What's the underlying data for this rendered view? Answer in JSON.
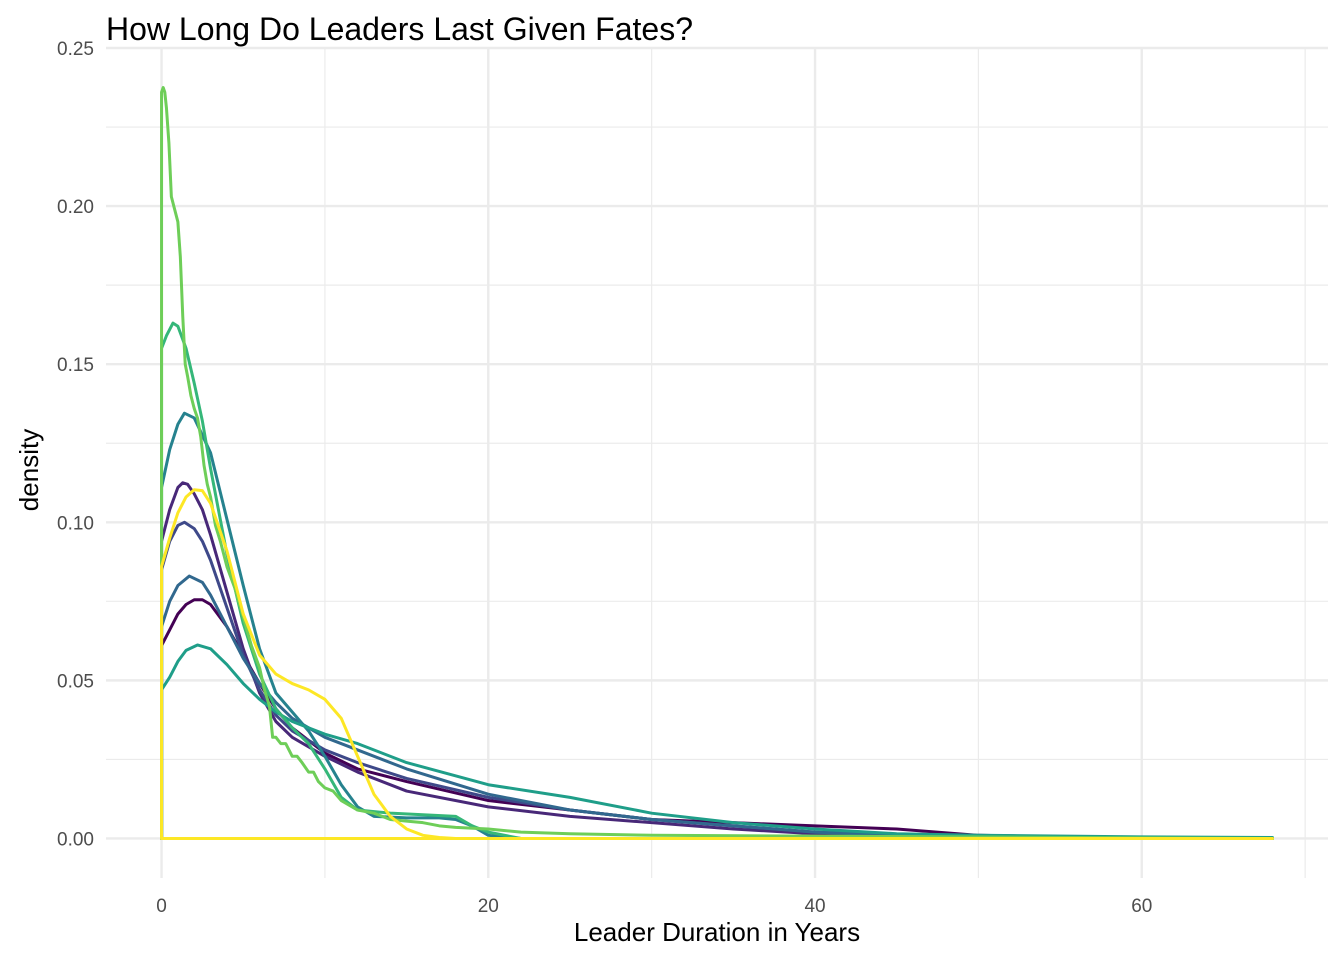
{
  "chart_data": {
    "type": "line",
    "title": "How Long Do Leaders Last Given Fates?",
    "xlabel": "Leader Duration in Years",
    "ylabel": "density",
    "xlim": [
      -3.4,
      71.4
    ],
    "ylim": [
      -0.0125,
      0.25
    ],
    "x_ticks": [
      0,
      20,
      40,
      60
    ],
    "x_tick_labels": [
      "0",
      "20",
      "40",
      "60"
    ],
    "y_ticks": [
      0,
      0.05,
      0.1,
      0.15,
      0.2,
      0.25
    ],
    "y_tick_labels": [
      "0.00",
      "0.05",
      "0.10",
      "0.15",
      "0.20",
      "0.25"
    ],
    "grid": true,
    "legend": "none",
    "series": [
      {
        "color": "#440154",
        "points": [
          [
            0,
            0
          ],
          [
            0,
            0.061
          ],
          [
            0.5,
            0.066
          ],
          [
            1,
            0.071
          ],
          [
            1.5,
            0.074
          ],
          [
            2,
            0.0755
          ],
          [
            2.5,
            0.0755
          ],
          [
            3,
            0.074
          ],
          [
            4,
            0.067
          ],
          [
            5,
            0.058
          ],
          [
            6,
            0.049
          ],
          [
            7,
            0.041
          ],
          [
            8,
            0.035
          ],
          [
            10,
            0.027
          ],
          [
            12,
            0.022
          ],
          [
            15,
            0.018
          ],
          [
            20,
            0.012
          ],
          [
            25,
            0.009
          ],
          [
            30,
            0.006
          ],
          [
            35,
            0.005
          ],
          [
            40,
            0.004
          ],
          [
            45,
            0.003
          ],
          [
            50,
            0.001
          ],
          [
            55,
            0.0005
          ],
          [
            68,
            0
          ],
          [
            68,
            0
          ],
          [
            0,
            0
          ]
        ]
      },
      {
        "color": "#482878",
        "points": [
          [
            0,
            0
          ],
          [
            0,
            0.094
          ],
          [
            0.5,
            0.104
          ],
          [
            1,
            0.111
          ],
          [
            1.3,
            0.1125
          ],
          [
            1.6,
            0.112
          ],
          [
            2,
            0.109
          ],
          [
            2.5,
            0.104
          ],
          [
            3,
            0.096
          ],
          [
            4,
            0.078
          ],
          [
            5,
            0.06
          ],
          [
            6,
            0.046
          ],
          [
            7,
            0.037
          ],
          [
            8,
            0.032
          ],
          [
            10,
            0.026
          ],
          [
            12,
            0.021
          ],
          [
            15,
            0.015
          ],
          [
            20,
            0.01
          ],
          [
            25,
            0.007
          ],
          [
            30,
            0.005
          ],
          [
            35,
            0.003
          ],
          [
            40,
            0.0015
          ],
          [
            45,
            0.001
          ],
          [
            50,
            0.0005
          ],
          [
            68,
            0
          ],
          [
            68,
            0
          ],
          [
            0,
            0
          ]
        ]
      },
      {
        "color": "#3e4989",
        "points": [
          [
            0,
            0
          ],
          [
            0,
            0.085
          ],
          [
            0.5,
            0.094
          ],
          [
            1,
            0.099
          ],
          [
            1.4,
            0.1
          ],
          [
            2,
            0.098
          ],
          [
            2.5,
            0.094
          ],
          [
            3,
            0.088
          ],
          [
            4,
            0.073
          ],
          [
            5,
            0.058
          ],
          [
            6,
            0.047
          ],
          [
            7,
            0.039
          ],
          [
            8,
            0.034
          ],
          [
            10,
            0.028
          ],
          [
            12,
            0.024
          ],
          [
            15,
            0.019
          ],
          [
            20,
            0.013
          ],
          [
            25,
            0.009
          ],
          [
            30,
            0.006
          ],
          [
            35,
            0.004
          ],
          [
            40,
            0.002
          ],
          [
            45,
            0.001
          ],
          [
            50,
            0.0005
          ],
          [
            68,
            0
          ],
          [
            68,
            0
          ],
          [
            0,
            0
          ]
        ]
      },
      {
        "color": "#31688e",
        "points": [
          [
            0,
            0
          ],
          [
            0,
            0.067
          ],
          [
            0.5,
            0.075
          ],
          [
            1,
            0.08
          ],
          [
            1.7,
            0.083
          ],
          [
            2.5,
            0.081
          ],
          [
            3,
            0.077
          ],
          [
            4,
            0.067
          ],
          [
            5,
            0.057
          ],
          [
            6,
            0.049
          ],
          [
            7,
            0.043
          ],
          [
            8,
            0.038
          ],
          [
            10,
            0.032
          ],
          [
            12,
            0.028
          ],
          [
            15,
            0.022
          ],
          [
            20,
            0.014
          ],
          [
            25,
            0.009
          ],
          [
            30,
            0.006
          ],
          [
            35,
            0.004
          ],
          [
            40,
            0.002
          ],
          [
            45,
            0.001
          ],
          [
            50,
            0.0005
          ],
          [
            68,
            0
          ],
          [
            68,
            0
          ],
          [
            0,
            0
          ]
        ]
      },
      {
        "color": "#26828e",
        "points": [
          [
            0,
            0
          ],
          [
            0,
            0.111
          ],
          [
            0.5,
            0.123
          ],
          [
            1,
            0.131
          ],
          [
            1.4,
            0.1345
          ],
          [
            2,
            0.133
          ],
          [
            3,
            0.122
          ],
          [
            4,
            0.101
          ],
          [
            5,
            0.08
          ],
          [
            6,
            0.06
          ],
          [
            7,
            0.046
          ],
          [
            8,
            0.04
          ],
          [
            9,
            0.034
          ],
          [
            10,
            0.026
          ],
          [
            11,
            0.017
          ],
          [
            12,
            0.01
          ],
          [
            13,
            0.007
          ],
          [
            15,
            0.0065
          ],
          [
            17,
            0.0065
          ],
          [
            18,
            0.006
          ],
          [
            19,
            0.004
          ],
          [
            20,
            0.001
          ],
          [
            22,
            0
          ],
          [
            68,
            0
          ],
          [
            0,
            0
          ]
        ]
      },
      {
        "color": "#1f9e89",
        "points": [
          [
            0,
            0
          ],
          [
            0,
            0.047
          ],
          [
            0.5,
            0.051
          ],
          [
            1,
            0.056
          ],
          [
            1.5,
            0.0595
          ],
          [
            2.2,
            0.0612
          ],
          [
            3,
            0.06
          ],
          [
            4,
            0.055
          ],
          [
            5,
            0.049
          ],
          [
            6,
            0.044
          ],
          [
            7,
            0.04
          ],
          [
            8,
            0.037
          ],
          [
            10,
            0.033
          ],
          [
            12,
            0.03
          ],
          [
            15,
            0.024
          ],
          [
            20,
            0.017
          ],
          [
            25,
            0.013
          ],
          [
            30,
            0.008
          ],
          [
            35,
            0.005
          ],
          [
            40,
            0.003
          ],
          [
            45,
            0.0015
          ],
          [
            50,
            0.001
          ],
          [
            60,
            0.0005
          ],
          [
            68,
            0.0003
          ],
          [
            68,
            0
          ],
          [
            0,
            0
          ]
        ]
      },
      {
        "color": "#35b779",
        "points": [
          [
            0,
            0
          ],
          [
            0,
            0.155
          ],
          [
            0.3,
            0.159
          ],
          [
            0.7,
            0.163
          ],
          [
            1,
            0.162
          ],
          [
            1.5,
            0.155
          ],
          [
            2,
            0.144
          ],
          [
            2.5,
            0.132
          ],
          [
            3,
            0.117
          ],
          [
            4,
            0.09
          ],
          [
            5,
            0.068
          ],
          [
            6,
            0.052
          ],
          [
            7,
            0.041
          ],
          [
            8,
            0.035
          ],
          [
            9,
            0.03
          ],
          [
            10,
            0.022
          ],
          [
            11,
            0.013
          ],
          [
            12,
            0.009
          ],
          [
            14,
            0.008
          ],
          [
            16,
            0.0075
          ],
          [
            18,
            0.007
          ],
          [
            19,
            0.004
          ],
          [
            20,
            0.002
          ],
          [
            22,
            0
          ],
          [
            68,
            0
          ],
          [
            0,
            0
          ]
        ]
      },
      {
        "color": "#6ece58",
        "points": [
          [
            0,
            0
          ],
          [
            0,
            0.236
          ],
          [
            0.1,
            0.2375
          ],
          [
            0.2,
            0.236
          ],
          [
            0.3,
            0.231
          ],
          [
            0.45,
            0.22
          ],
          [
            0.6,
            0.203
          ],
          [
            0.8,
            0.199
          ],
          [
            1,
            0.195
          ],
          [
            1.15,
            0.184
          ],
          [
            1.3,
            0.165
          ],
          [
            1.45,
            0.15
          ],
          [
            1.6,
            0.146
          ],
          [
            1.8,
            0.14
          ],
          [
            2,
            0.136
          ],
          [
            2.2,
            0.133
          ],
          [
            2.4,
            0.127
          ],
          [
            2.6,
            0.118
          ],
          [
            2.8,
            0.112
          ],
          [
            3,
            0.108
          ],
          [
            3.3,
            0.099
          ],
          [
            3.6,
            0.094
          ],
          [
            4,
            0.086
          ],
          [
            4.5,
            0.079
          ],
          [
            5,
            0.07
          ],
          [
            5.5,
            0.061
          ],
          [
            6,
            0.054
          ],
          [
            6.3,
            0.047
          ],
          [
            6.6,
            0.042
          ],
          [
            6.8,
            0.032
          ],
          [
            7,
            0.032
          ],
          [
            7.3,
            0.03
          ],
          [
            7.6,
            0.03
          ],
          [
            8,
            0.026
          ],
          [
            8.3,
            0.026
          ],
          [
            8.6,
            0.024
          ],
          [
            9,
            0.021
          ],
          [
            9.3,
            0.021
          ],
          [
            9.6,
            0.018
          ],
          [
            10,
            0.016
          ],
          [
            10.5,
            0.015
          ],
          [
            11,
            0.012
          ],
          [
            12,
            0.009
          ],
          [
            13,
            0.008
          ],
          [
            14,
            0.006
          ],
          [
            15,
            0.0055
          ],
          [
            16,
            0.005
          ],
          [
            17,
            0.004
          ],
          [
            18,
            0.0035
          ],
          [
            20,
            0.003
          ],
          [
            22,
            0.002
          ],
          [
            25,
            0.0015
          ],
          [
            30,
            0.001
          ],
          [
            68,
            0
          ],
          [
            68,
            0
          ],
          [
            0,
            0
          ]
        ]
      },
      {
        "color": "#fde725",
        "points": [
          [
            0,
            0
          ],
          [
            0,
            0.086
          ],
          [
            0.5,
            0.095
          ],
          [
            1,
            0.103
          ],
          [
            1.5,
            0.108
          ],
          [
            2,
            0.1103
          ],
          [
            2.5,
            0.11
          ],
          [
            3,
            0.106
          ],
          [
            4,
            0.091
          ],
          [
            5,
            0.071
          ],
          [
            6,
            0.058
          ],
          [
            7,
            0.052
          ],
          [
            8,
            0.049
          ],
          [
            9,
            0.047
          ],
          [
            10,
            0.044
          ],
          [
            11,
            0.038
          ],
          [
            12,
            0.026
          ],
          [
            13,
            0.014
          ],
          [
            14,
            0.007
          ],
          [
            15,
            0.003
          ],
          [
            16,
            0.001
          ],
          [
            17,
            0.0003
          ],
          [
            18,
            0
          ],
          [
            68,
            0
          ],
          [
            0,
            0
          ]
        ]
      }
    ]
  }
}
